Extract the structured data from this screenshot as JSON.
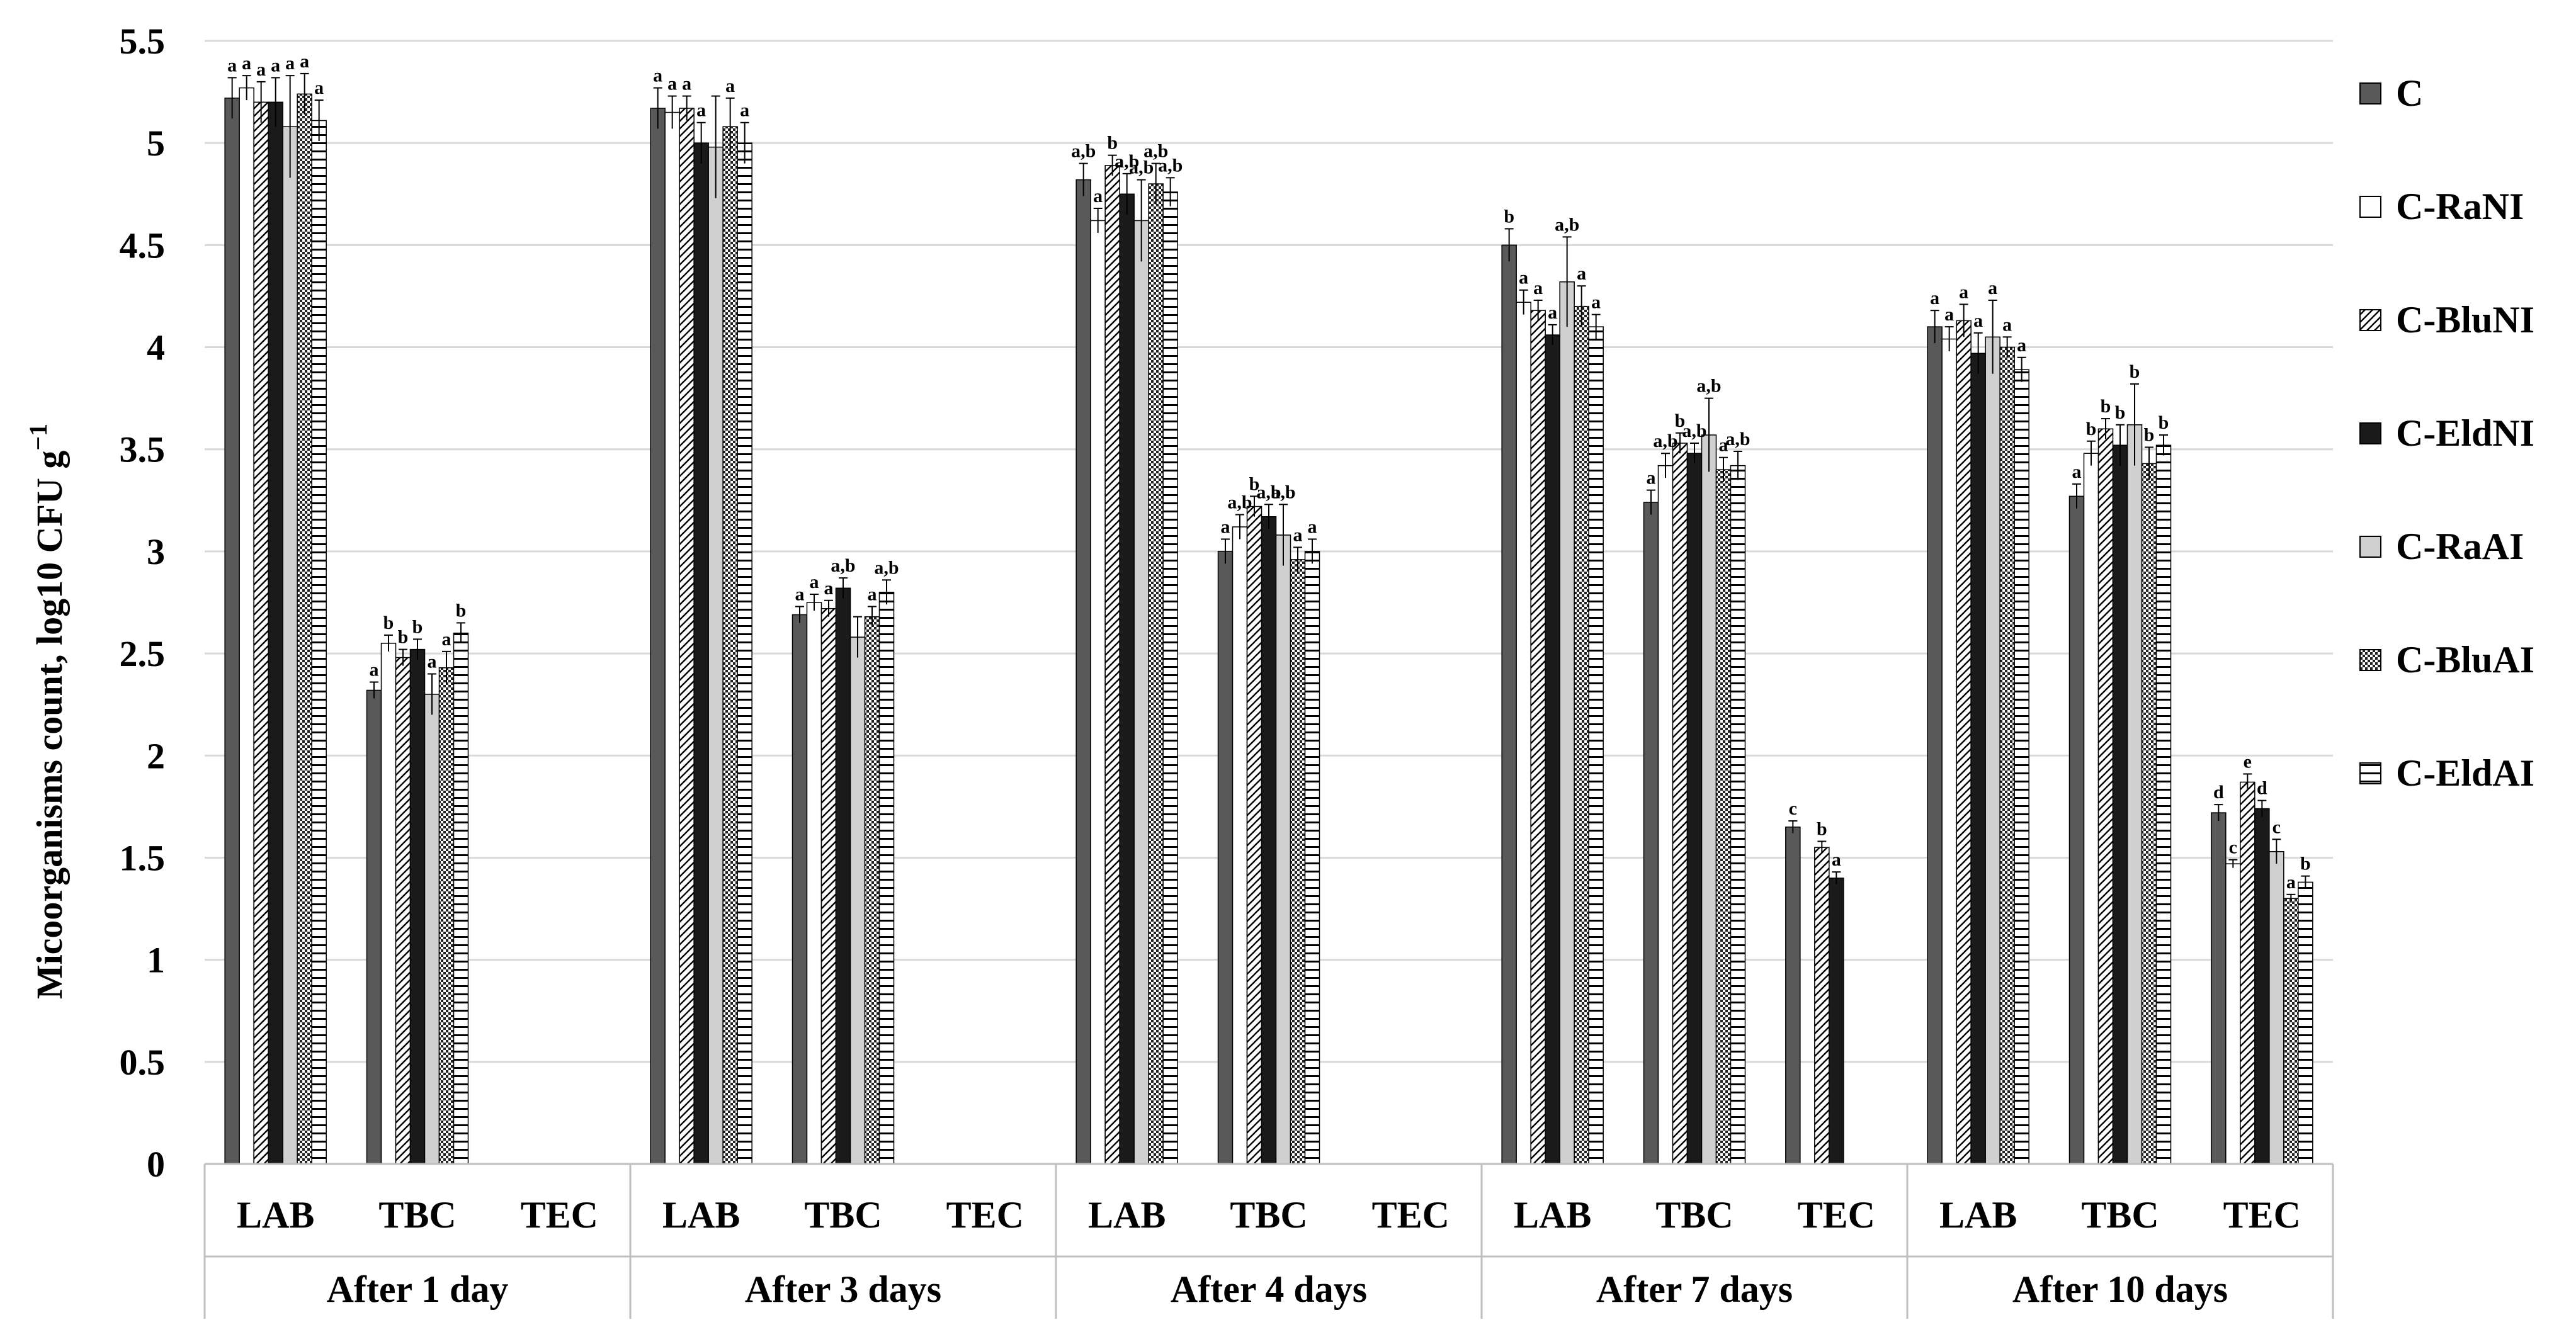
{
  "chart_data": {
    "type": "bar",
    "ylabel": "Micoorganisms  count, log10 CFU g",
    "ylabel_superscript": "−1",
    "ylim": [
      0,
      5.5
    ],
    "yticks": [
      "0",
      "0.5",
      "1",
      "1.5",
      "2",
      "2.5",
      "3",
      "3.5",
      "4",
      "4.5",
      "5",
      "5.5"
    ],
    "grid": true,
    "legend_position": "right",
    "subcategories": [
      "LAB",
      "TBC",
      "TEC"
    ],
    "groups": [
      "After 1 day",
      "After 3 days",
      "After 4 days",
      "After 7 days",
      "After 10 days"
    ],
    "series": [
      {
        "name": "C",
        "pattern": "dark-gray"
      },
      {
        "name": "C-RaNI",
        "pattern": "white"
      },
      {
        "name": "C-BluNI",
        "pattern": "diagonal-hatch"
      },
      {
        "name": "C-EldNI",
        "pattern": "black"
      },
      {
        "name": "C-RaAI",
        "pattern": "light-gray"
      },
      {
        "name": "C-BluAI",
        "pattern": "dotted"
      },
      {
        "name": "C-EldAI",
        "pattern": "horizontal-lines"
      }
    ],
    "data": [
      [
        [
          [
            5.22,
            0.1,
            "a"
          ],
          [
            5.27,
            0.06,
            "a"
          ],
          [
            5.2,
            0.1,
            "a"
          ],
          [
            5.2,
            0.12,
            "a"
          ],
          [
            5.08,
            0.25,
            "a"
          ],
          [
            5.24,
            0.1,
            "a"
          ],
          [
            5.11,
            0.1,
            "a"
          ]
        ],
        [
          [
            2.32,
            0.04,
            "a"
          ],
          [
            2.55,
            0.04,
            "b"
          ],
          [
            2.48,
            0.04,
            "b"
          ],
          [
            2.52,
            0.05,
            "b"
          ],
          [
            2.3,
            0.1,
            "a"
          ],
          [
            2.43,
            0.08,
            "a"
          ],
          [
            2.6,
            0.05,
            "b"
          ]
        ],
        []
      ],
      [
        [
          [
            5.17,
            0.1,
            "a"
          ],
          [
            5.15,
            0.08,
            "a"
          ],
          [
            5.17,
            0.06,
            "a"
          ],
          [
            5.0,
            0.1,
            "a"
          ],
          [
            4.98,
            0.25,
            ""
          ],
          [
            5.08,
            0.14,
            "a"
          ],
          [
            5.0,
            0.1,
            "a"
          ]
        ],
        [
          [
            2.69,
            0.04,
            "a"
          ],
          [
            2.75,
            0.04,
            "a"
          ],
          [
            2.72,
            0.04,
            "a"
          ],
          [
            2.82,
            0.05,
            "a,b"
          ],
          [
            2.58,
            0.1,
            ""
          ],
          [
            2.68,
            0.05,
            "a"
          ],
          [
            2.8,
            0.06,
            "a,b"
          ]
        ],
        []
      ],
      [
        [
          [
            4.82,
            0.08,
            "a,b"
          ],
          [
            4.62,
            0.06,
            "a"
          ],
          [
            4.89,
            0.05,
            "b"
          ],
          [
            4.75,
            0.1,
            "a,b"
          ],
          [
            4.62,
            0.2,
            "a,b"
          ],
          [
            4.8,
            0.1,
            "a,b"
          ],
          [
            4.76,
            0.07,
            "a,b"
          ]
        ],
        [
          [
            3.0,
            0.06,
            "a"
          ],
          [
            3.12,
            0.06,
            "a,b"
          ],
          [
            3.22,
            0.05,
            "b"
          ],
          [
            3.17,
            0.06,
            "a,b"
          ],
          [
            3.08,
            0.15,
            "a,b"
          ],
          [
            2.96,
            0.06,
            "a"
          ],
          [
            3.0,
            0.06,
            "a"
          ]
        ],
        []
      ],
      [
        [
          [
            4.5,
            0.08,
            "b"
          ],
          [
            4.22,
            0.06,
            "a"
          ],
          [
            4.18,
            0.05,
            "a"
          ],
          [
            4.06,
            0.05,
            "a"
          ],
          [
            4.32,
            0.22,
            "a,b"
          ],
          [
            4.2,
            0.1,
            "a"
          ],
          [
            4.1,
            0.06,
            "a"
          ]
        ],
        [
          [
            3.24,
            0.06,
            "a"
          ],
          [
            3.42,
            0.06,
            "a,b"
          ],
          [
            3.53,
            0.05,
            "b"
          ],
          [
            3.48,
            0.05,
            "a,b"
          ],
          [
            3.57,
            0.18,
            "a,b"
          ],
          [
            3.4,
            0.06,
            "a"
          ],
          [
            3.42,
            0.07,
            "a,b"
          ]
        ],
        [
          [
            1.65,
            0.03,
            "c"
          ],
          [
            0,
            0,
            ""
          ],
          [
            1.55,
            0.03,
            "b"
          ],
          [
            1.4,
            0.03,
            "a"
          ],
          [
            0,
            0,
            ""
          ],
          [
            0,
            0,
            ""
          ],
          [
            0,
            0,
            ""
          ]
        ]
      ],
      [
        [
          [
            4.1,
            0.08,
            "a"
          ],
          [
            4.04,
            0.06,
            "a"
          ],
          [
            4.13,
            0.08,
            "a"
          ],
          [
            3.97,
            0.1,
            "a"
          ],
          [
            4.05,
            0.18,
            "a"
          ],
          [
            4.0,
            0.05,
            "a"
          ],
          [
            3.89,
            0.06,
            "a"
          ]
        ],
        [
          [
            3.27,
            0.06,
            "a"
          ],
          [
            3.48,
            0.06,
            "b"
          ],
          [
            3.6,
            0.05,
            "b"
          ],
          [
            3.52,
            0.1,
            "b"
          ],
          [
            3.62,
            0.2,
            "b"
          ],
          [
            3.43,
            0.08,
            "b"
          ],
          [
            3.52,
            0.05,
            "b"
          ]
        ],
        [
          [
            1.72,
            0.04,
            "d"
          ],
          [
            1.47,
            0.02,
            "c"
          ],
          [
            1.87,
            0.04,
            "e"
          ],
          [
            1.74,
            0.04,
            "d"
          ],
          [
            1.53,
            0.06,
            "c"
          ],
          [
            1.3,
            0.02,
            "a"
          ],
          [
            1.38,
            0.03,
            "b"
          ]
        ]
      ]
    ]
  }
}
